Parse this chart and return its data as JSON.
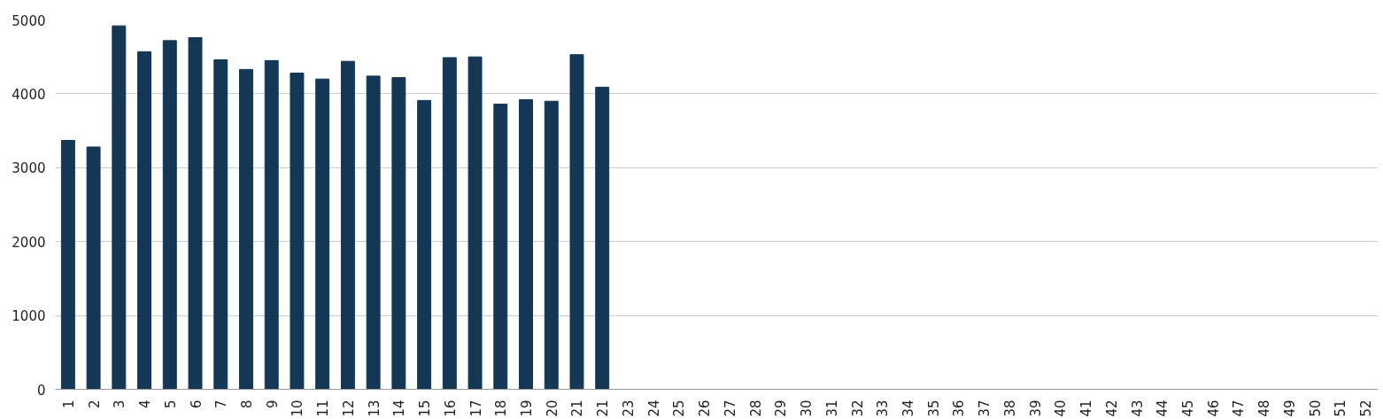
{
  "chart_data": {
    "type": "bar",
    "categories": [
      "1",
      "2",
      "3",
      "4",
      "5",
      "6",
      "7",
      "8",
      "9",
      "10",
      "11",
      "12",
      "13",
      "14",
      "15",
      "16",
      "17",
      "18",
      "19",
      "20",
      "21",
      "21",
      "23",
      "24",
      "25",
      "26",
      "27",
      "28",
      "29",
      "30",
      "31",
      "32",
      "33",
      "34",
      "35",
      "36",
      "37",
      "38",
      "39",
      "40",
      "41",
      "42",
      "43",
      "44",
      "45",
      "46",
      "47",
      "48",
      "49",
      "50",
      "51",
      "52"
    ],
    "values": [
      3370,
      3280,
      4920,
      4570,
      4720,
      4760,
      4460,
      4330,
      4450,
      4280,
      4200,
      4440,
      4240,
      4220,
      3910,
      4490,
      4500,
      3860,
      3920,
      3900,
      4530,
      4090,
      null,
      null,
      null,
      null,
      null,
      null,
      null,
      null,
      null,
      null,
      null,
      null,
      null,
      null,
      null,
      null,
      null,
      null,
      null,
      null,
      null,
      null,
      null,
      null,
      null,
      null,
      null,
      null,
      null,
      null
    ],
    "color": "#133755",
    "ylim": [
      0,
      5000
    ],
    "yticks": [
      0,
      1000,
      2000,
      3000,
      4000,
      5000
    ],
    "grid": "y"
  }
}
